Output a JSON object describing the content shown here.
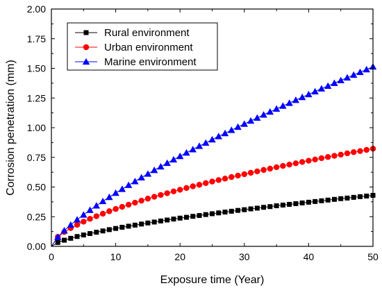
{
  "chart_data": {
    "type": "scatter",
    "title": "",
    "xlabel": "Exposure time (Year)",
    "ylabel": "Corrosion penetration (mm)",
    "xlim": [
      0,
      50
    ],
    "ylim": [
      0,
      2.0
    ],
    "xticks": [
      "0",
      "10",
      "20",
      "30",
      "40",
      "50"
    ],
    "yticks": [
      "0.00",
      "0.25",
      "0.50",
      "0.75",
      "1.00",
      "1.25",
      "1.50",
      "1.75",
      "2.00"
    ],
    "grid": false,
    "legend_position": "top-left",
    "x": [
      0,
      1,
      2,
      3,
      4,
      5,
      6,
      7,
      8,
      9,
      10,
      11,
      12,
      13,
      14,
      15,
      16,
      17,
      18,
      19,
      20,
      21,
      22,
      23,
      24,
      25,
      26,
      27,
      28,
      29,
      30,
      31,
      32,
      33,
      34,
      35,
      36,
      37,
      38,
      39,
      40,
      41,
      42,
      43,
      44,
      45,
      46,
      47,
      48,
      49,
      50
    ],
    "series": [
      {
        "name": "Rural environment",
        "color": "#000000",
        "marker": "square",
        "model": {
          "a": 0.033,
          "b": 0.66
        },
        "values": [
          0.0,
          0.033,
          0.052,
          0.068,
          0.083,
          0.096,
          0.108,
          0.119,
          0.13,
          0.141,
          0.151,
          0.161,
          0.17,
          0.179,
          0.188,
          0.197,
          0.205,
          0.214,
          0.222,
          0.23,
          0.238,
          0.245,
          0.253,
          0.26,
          0.268,
          0.275,
          0.282,
          0.289,
          0.296,
          0.303,
          0.309,
          0.316,
          0.322,
          0.329,
          0.335,
          0.342,
          0.348,
          0.354,
          0.36,
          0.366,
          0.372,
          0.378,
          0.384,
          0.39,
          0.396,
          0.402,
          0.407,
          0.413,
          0.419,
          0.424,
          0.43
        ]
      },
      {
        "name": "Urban environment",
        "color": "#ff0000",
        "marker": "circle",
        "model": {
          "a": 0.08,
          "b": 0.595
        },
        "values": [
          0.0,
          0.08,
          0.121,
          0.154,
          0.182,
          0.208,
          0.232,
          0.254,
          0.275,
          0.296,
          0.315,
          0.333,
          0.351,
          0.368,
          0.385,
          0.402,
          0.418,
          0.433,
          0.448,
          0.463,
          0.477,
          0.492,
          0.506,
          0.519,
          0.533,
          0.546,
          0.559,
          0.571,
          0.584,
          0.596,
          0.608,
          0.62,
          0.632,
          0.644,
          0.655,
          0.667,
          0.678,
          0.689,
          0.7,
          0.711,
          0.722,
          0.732,
          0.743,
          0.753,
          0.763,
          0.773,
          0.784,
          0.794,
          0.803,
          0.813,
          0.823
        ]
      },
      {
        "name": "Marine environment",
        "color": "#0000ff",
        "marker": "triangle",
        "model": {
          "a": 0.078,
          "b": 0.765
        },
        "values": [
          0.0,
          0.078,
          0.133,
          0.181,
          0.225,
          0.266,
          0.306,
          0.343,
          0.38,
          0.415,
          0.45,
          0.483,
          0.516,
          0.548,
          0.58,
          0.611,
          0.642,
          0.672,
          0.702,
          0.731,
          0.76,
          0.789,
          0.817,
          0.845,
          0.872,
          0.9,
          0.927,
          0.953,
          0.98,
          1.006,
          1.032,
          1.058,
          1.083,
          1.109,
          1.134,
          1.159,
          1.184,
          1.208,
          1.233,
          1.257,
          1.281,
          1.305,
          1.329,
          1.352,
          1.376,
          1.399,
          1.422,
          1.445,
          1.468,
          1.491,
          1.514
        ]
      }
    ]
  }
}
